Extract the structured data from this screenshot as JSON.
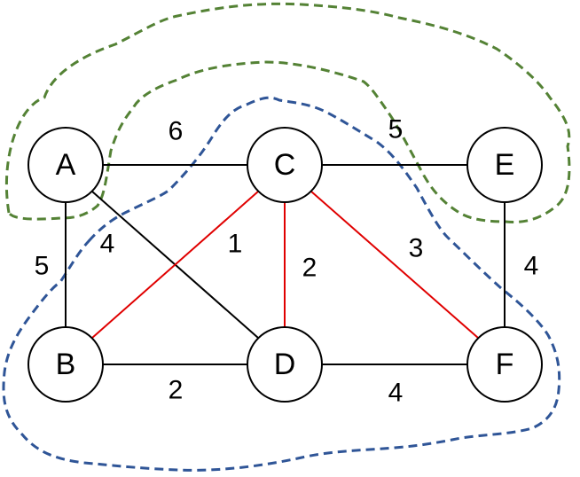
{
  "nodes": [
    {
      "label": "A"
    },
    {
      "label": "C"
    },
    {
      "label": "E"
    },
    {
      "label": "B"
    },
    {
      "label": "D"
    },
    {
      "label": "F"
    }
  ],
  "edges": [
    {
      "label": "6"
    },
    {
      "label": "5"
    },
    {
      "label": "5"
    },
    {
      "label": "4"
    },
    {
      "label": "1"
    },
    {
      "label": "2"
    },
    {
      "label": "3"
    },
    {
      "label": "4"
    },
    {
      "label": "2"
    },
    {
      "label": "4"
    }
  ]
}
